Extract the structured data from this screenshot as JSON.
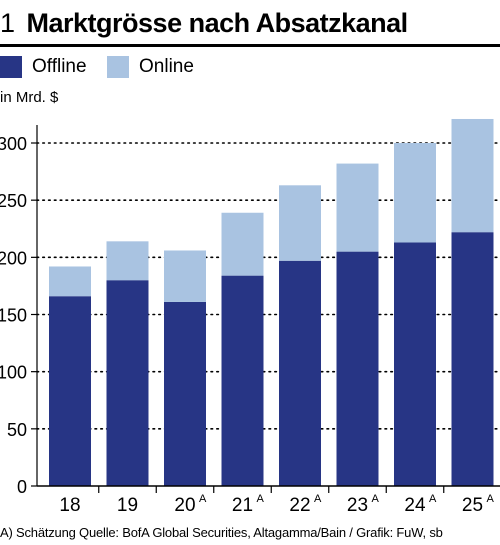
{
  "header": {
    "number": "1",
    "title": "Marktgrösse nach Absatzkanal"
  },
  "legend": [
    {
      "label": "Offline",
      "color": "#273585"
    },
    {
      "label": "Online",
      "color": "#a9c3e1"
    }
  ],
  "unit_label": "in Mrd. $",
  "footnote": "A) Schätzung Quelle: BofA Global Securities, Altagamma/Bain / Grafik: FuW, sb",
  "chart_data": {
    "type": "bar",
    "stacked": true,
    "categories": [
      "18",
      "19",
      "20",
      "21",
      "22",
      "23",
      "24",
      "25"
    ],
    "category_superscripts": [
      "",
      "",
      "A",
      "A",
      "A",
      "A",
      "A",
      "A"
    ],
    "series": [
      {
        "name": "Offline",
        "values": [
          166,
          180,
          161,
          184,
          197,
          205,
          213,
          222
        ],
        "color": "#273585"
      },
      {
        "name": "Online",
        "values": [
          26,
          34,
          45,
          55,
          66,
          77,
          87,
          99
        ],
        "color": "#a9c3e1"
      }
    ],
    "ylim": [
      0,
      320
    ],
    "yticks": [
      0,
      50,
      100,
      150,
      200,
      250,
      300
    ],
    "grid": true,
    "legend_position": "top-left"
  }
}
